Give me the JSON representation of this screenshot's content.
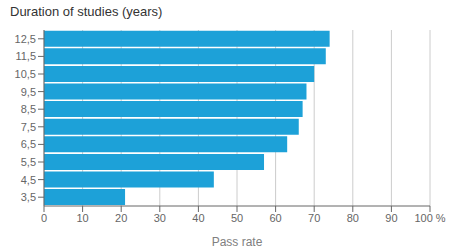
{
  "chart_data": {
    "type": "bar",
    "orientation": "horizontal",
    "title": "Duration of studies (years)",
    "xlabel": "Pass rate",
    "categories": [
      "12,5",
      "11,5",
      "10,5",
      "9,5",
      "8,5",
      "7,5",
      "6,5",
      "5,5",
      "4,5",
      "3,5"
    ],
    "values": [
      74,
      73,
      70,
      68,
      67,
      66,
      63,
      57,
      44,
      21
    ],
    "color": "#1da1d8",
    "xlim": [
      0,
      100
    ],
    "xticks": [
      0,
      10,
      20,
      30,
      40,
      50,
      60,
      70,
      80,
      90,
      {
        "value": 100,
        "label": "100 %"
      }
    ],
    "grid": true
  }
}
